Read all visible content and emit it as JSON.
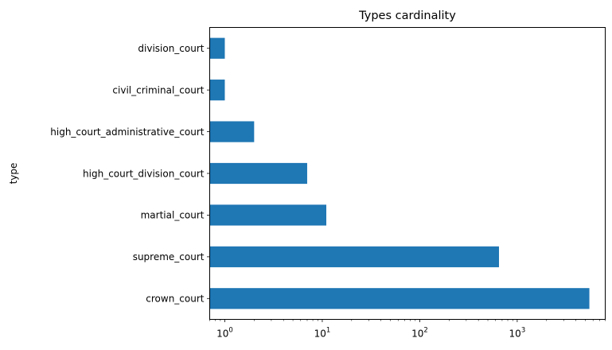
{
  "chart_data": {
    "type": "bar",
    "orientation": "horizontal",
    "title": "Types cardinality",
    "xlabel": "",
    "ylabel": "type",
    "x_scale": "log",
    "xlim": [
      0.7,
      8000
    ],
    "x_ticks": [
      1,
      10,
      100,
      1000
    ],
    "x_tick_labels": [
      {
        "base": "10",
        "exp": "0"
      },
      {
        "base": "10",
        "exp": "1"
      },
      {
        "base": "10",
        "exp": "2"
      },
      {
        "base": "10",
        "exp": "3"
      }
    ],
    "categories": [
      "crown_court",
      "supreme_court",
      "martial_court",
      "high_court_division_court",
      "high_court_administrative_court",
      "civil_criminal_court",
      "division_court"
    ],
    "values": [
      5500,
      650,
      11,
      7,
      2,
      1,
      1
    ],
    "bar_color": "#1f77b4",
    "grid": false,
    "legend": "none"
  }
}
